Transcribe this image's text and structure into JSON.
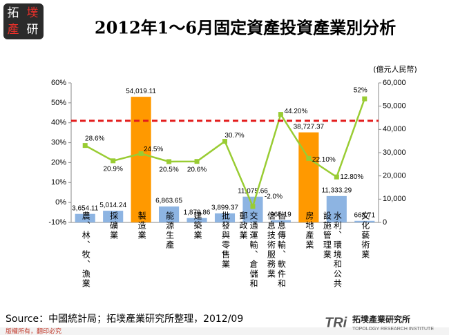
{
  "header": {
    "logo": [
      "拓",
      "墣",
      "產",
      "研"
    ],
    "title": "2012年1～6月固定資產投資產業別分析"
  },
  "chart_data": {
    "type": "combo",
    "y2_unit": "(億元人民幣)",
    "categories": [
      "農、林、牧、漁業",
      "採礦業",
      "製造業",
      "能源生產",
      "建築業",
      "批發與零售業",
      "交通運輸、倉儲和郵政業",
      "信息傳輸、軟件和信息技術服務業",
      "房地產業",
      "水利、環境和公共設施管理業",
      "文化藝術業"
    ],
    "ylim": [
      -10,
      60
    ],
    "yticks": [
      {
        "value": -10,
        "label": "-10%"
      },
      {
        "value": 0,
        "label": "0%"
      },
      {
        "value": 10,
        "label": "10%"
      },
      {
        "value": 20,
        "label": "20%"
      },
      {
        "value": 30,
        "label": "30%"
      },
      {
        "value": 40,
        "label": "40%"
      },
      {
        "value": 50,
        "label": "50%"
      },
      {
        "value": 60,
        "label": "60%"
      }
    ],
    "y2lim": [
      0,
      60000
    ],
    "y2ticks": [
      0,
      {
        "value": 10000,
        "label": "10,000"
      },
      {
        "value": 20000,
        "label": "20,000"
      },
      {
        "value": 30000,
        "label": "30,000"
      },
      {
        "value": 40000,
        "label": "40,000"
      },
      {
        "value": 50000,
        "label": "50,000"
      },
      {
        "value": 60000,
        "label": "60,000"
      }
    ],
    "reference_line": {
      "value": 41,
      "color": "#e31b1b"
    },
    "series": [
      {
        "type": "bar",
        "axis": "y2",
        "colors": [
          "#8db4e2",
          "#8db4e2",
          "#ff9900",
          "#8db4e2",
          "#8db4e2",
          "#8db4e2",
          "#8db4e2",
          "#8db4e2",
          "#ff9900",
          "#8db4e2",
          "#8db4e2"
        ],
        "values": [
          3654.11,
          5014.24,
          54019.11,
          6863.65,
          1870.86,
          3899.37,
          11075.66,
          965.19,
          38727.37,
          11333.29,
          668.71
        ],
        "value_labels": [
          "3,654.11",
          "5,014.24",
          "54,019.11",
          "6,863.65",
          "1,870.86",
          "3,899.37",
          "11,075.66",
          "965.19",
          "38,727.37",
          "11,333.29",
          "668.71"
        ]
      },
      {
        "type": "line",
        "color": "#99cc33",
        "values": [
          28.6,
          20.9,
          24.5,
          20.5,
          20.6,
          30.7,
          -2.0,
          44.2,
          22.1,
          12.8,
          52
        ],
        "value_labels": [
          "28.6%",
          "20.9%",
          "24.5%",
          "20.5%",
          "20.6%",
          "30.7%",
          "-2.0%",
          "44.20%",
          "22.10%",
          "12.80%",
          "52%"
        ]
      }
    ]
  },
  "footer": {
    "source": "Source：中國統計局；拓墣產業研究所整理，2012/09",
    "copyright": "版權所有，翻印必究",
    "brand": "TRi",
    "brand_name": "拓墣產業研究所",
    "brand_en": "TOPOLOGY RESEARCH INSTITUTE"
  }
}
